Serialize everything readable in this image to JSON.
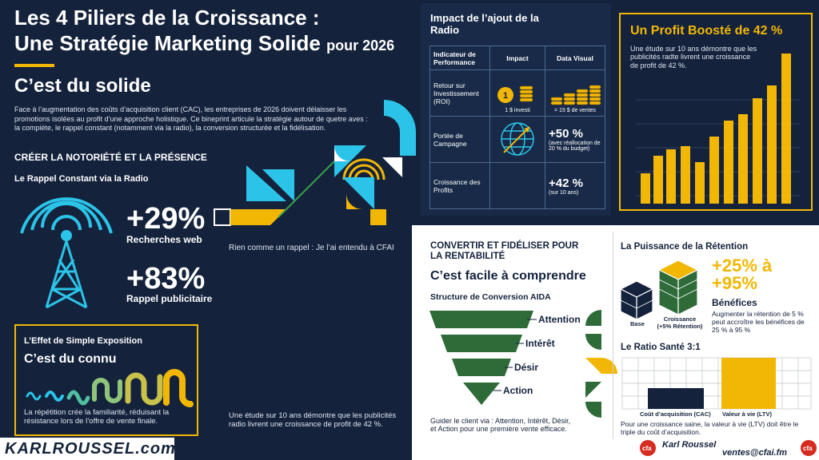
{
  "header": {
    "title_line1": "Les 4 Piliers de la Croissance :",
    "title_line2": "Une Stratégie Marketing Solide",
    "title_suffix": "pour 2026"
  },
  "awareness": {
    "heading": "C’est du solide",
    "intro": "Face à l’augmentation des coûts d’acquisition client (CAC), les entreprises de 2026 doivent délaisser les promotions isolées au profit d’une approche holistique. Ce bineprint articule la stratégie autour de quetre aves : la compiète, le rappel constant (notamment via la radio), la conversion structurée et la fidélisation.",
    "section_title": "CRÉER LA NOTORIÉTÉ ET LA PRÉSENCE",
    "subtitle": "Le Rappel Constant via la Radio",
    "stats": [
      {
        "value": "+29%",
        "label": "Recherches web"
      },
      {
        "value": "+83%",
        "label": "Rappel publicitaire"
      }
    ],
    "caption": "Rien comme un rappel : Je l’ai entendu à CFAI",
    "note": "Une étude sur 10 ans démontre que les publicités radio livrent une croissance de profit de 42 %."
  },
  "exposure": {
    "title": "L’Effet de Simple Exposition",
    "heading": "C’est du connu",
    "text": "La répétition crée la familiarité, réduisant la résistance lors de l’offre de vente finale."
  },
  "impact": {
    "title": "Impact de l’ajout de la Radio",
    "headers": [
      "Indicateur de Performance",
      "Impact",
      "Data Visual"
    ],
    "rows": [
      {
        "label": "Retour sur Investissement (ROI)",
        "coin": "1",
        "impact": "1 $ investi",
        "visual": "= 15 $ de ventes"
      },
      {
        "label": "Portée de Campagne",
        "visual": "+50 %",
        "detail": "(avec réallocation de 20 % du budget)"
      },
      {
        "label": "Croissance des Profits",
        "visual": "+42 %",
        "detail": "(sur 10 ans)"
      }
    ]
  },
  "profit": {
    "title": "Un Profit Boosté de 42 %",
    "text": "Une étude sur 10 ans démontre que les publicités radte livrent une croissance de profit de 42 %."
  },
  "conversion": {
    "section_title": "CONVERTIR ET FIDÉLISER POUR LA RENTABILITÉ",
    "heading": "C’est facile à comprendre",
    "aida_title": "Structure de Conversion AIDA",
    "stages": [
      "Attention",
      "Intérêt",
      "Désir",
      "Action"
    ],
    "text": "Guider le client via : Attention, Intérêt, Désir, et Action pour une première vente efficace."
  },
  "retention": {
    "title": "La Puissance de la Rétention",
    "base": "Base",
    "growth": "Croissance (+5% Rétention)",
    "range": "+25% à +95%",
    "label": "Bénéfices",
    "text": "Augmenter la rétention de 5 % peut accroître les bénéfices de 25 % à 95 %"
  },
  "ratio": {
    "title": "Le Ratio Santé 3:1",
    "cac": "Coût d’acquisition (CAC)",
    "ltv": "Valeur à vie (LTV)",
    "text": "Pour une croissance saine, la valeur à vie (LTV) doit être le triple du coût d’acquisition."
  },
  "footer": {
    "site": "KARLROUSSEL.com",
    "logo": "cfa",
    "name": "Karl Roussel",
    "email": "ventes@cfai.fm"
  }
}
